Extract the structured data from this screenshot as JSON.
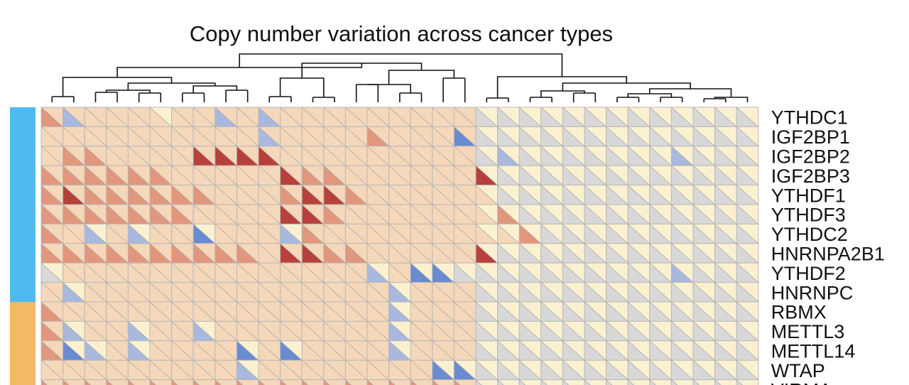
{
  "chart_data": {
    "type": "heatmap",
    "title": "Copy number variation across cancer types",
    "xlabel": "",
    "ylabel": "",
    "n_columns": 33,
    "rows": [
      "YTHDC1",
      "IGF2BP1",
      "IGF2BP2",
      "IGF2BP3",
      "YTHDF1",
      "YTHDF3",
      "YTHDC2",
      "HNRNPA2B1",
      "YTHDF2",
      "HNRNPC",
      "RBMX",
      "METTL3",
      "METTL14",
      "WTAP",
      "VIRMA"
    ],
    "row_groups": [
      {
        "color": "#4fbaf2",
        "rows": [
          "YTHDC1",
          "IGF2BP1",
          "IGF2BP2",
          "IGF2BP3",
          "YTHDF1",
          "YTHDF3",
          "YTHDC2",
          "HNRNPA2B1",
          "YTHDF2",
          "HNRNPC"
        ]
      },
      {
        "color": "#f5b865",
        "rows": [
          "RBMX",
          "METTL3",
          "METTL14",
          "WTAP",
          "VIRMA"
        ]
      }
    ],
    "cell_encoding": "each cell split diagonally: lower-left triangle and upper-right triangle, colored by level from -2 (blue) to +3 (dark red)",
    "color_scale": {
      "-2": "#6a8bd0",
      "-1": "#a9b8de",
      "0": "#d8d8d8",
      "0.5": "#fbf1d0",
      "1": "#f5d7b9",
      "2": "#e2967c",
      "3": "#b8403a"
    },
    "values_lower_left": [
      [
        2,
        -1,
        1,
        1,
        1,
        1,
        1,
        1,
        -1,
        1,
        -1,
        1,
        1,
        1,
        1,
        1,
        1,
        1,
        1,
        1,
        0,
        0,
        0,
        0,
        0,
        0,
        0,
        0,
        0,
        0,
        0,
        0,
        0
      ],
      [
        1,
        1,
        1,
        1,
        1,
        1,
        1,
        1,
        1,
        1,
        -1,
        1,
        1,
        1,
        1,
        2,
        1,
        1,
        1,
        -2,
        0,
        0,
        0,
        0,
        0,
        0,
        0,
        0,
        0,
        0,
        0,
        0,
        0
      ],
      [
        1,
        2,
        2,
        1,
        1,
        1,
        1,
        3,
        3,
        3,
        3,
        1,
        1,
        1,
        1,
        1,
        1,
        1,
        1,
        1,
        0,
        -1,
        0,
        0,
        0,
        0,
        0,
        0,
        0,
        -1,
        0,
        0,
        0
      ],
      [
        2,
        2,
        2,
        2,
        2,
        2,
        1,
        1,
        1,
        1,
        1,
        3,
        2,
        2,
        1,
        1,
        1,
        1,
        1,
        1,
        3,
        0,
        0,
        0,
        0,
        0,
        0,
        0,
        0,
        0,
        0,
        0,
        0
      ],
      [
        2,
        3,
        2,
        2,
        2,
        2,
        2,
        2,
        1,
        1,
        1,
        2,
        3,
        3,
        2,
        1,
        1,
        1,
        1,
        1,
        1,
        0,
        0,
        0,
        0,
        0,
        0,
        0,
        0,
        0,
        0,
        0,
        0
      ],
      [
        2,
        2,
        2,
        2,
        2,
        2,
        2,
        1,
        1,
        1,
        1,
        3,
        3,
        2,
        1,
        1,
        1,
        1,
        1,
        1,
        1,
        2,
        0,
        0,
        0,
        0,
        0,
        0,
        0,
        0,
        0,
        0,
        0
      ],
      [
        2,
        1,
        -1,
        1,
        -1,
        1,
        1,
        -2,
        1,
        1,
        1,
        -1,
        2,
        1,
        1,
        1,
        1,
        1,
        1,
        1,
        1,
        1,
        2,
        0,
        0,
        0,
        0,
        0,
        0,
        0,
        0,
        0,
        0
      ],
      [
        2,
        2,
        2,
        2,
        2,
        2,
        2,
        2,
        2,
        2,
        1,
        3,
        3,
        2,
        2,
        1,
        1,
        1,
        1,
        1,
        3,
        0,
        0,
        0,
        0,
        0,
        0,
        0,
        0,
        0,
        0,
        0,
        0
      ],
      [
        0,
        1,
        1,
        1,
        1,
        1,
        1,
        1,
        1,
        1,
        1,
        1,
        1,
        1,
        1,
        -1,
        1,
        -2,
        -2,
        0,
        0,
        0,
        0,
        0,
        0,
        0,
        0,
        0,
        0,
        -1,
        0,
        0,
        0
      ],
      [
        1,
        -1,
        1,
        1,
        1,
        1,
        1,
        1,
        1,
        1,
        1,
        1,
        1,
        1,
        1,
        1,
        -1,
        1,
        1,
        1,
        0,
        0,
        0,
        0,
        0,
        0,
        0,
        0,
        0,
        0,
        0,
        0,
        0
      ],
      [
        2,
        1,
        1,
        1,
        1,
        1,
        1,
        1,
        1,
        1,
        1,
        1,
        1,
        1,
        1,
        1,
        -1,
        1,
        1,
        1,
        0,
        0,
        0,
        0,
        0,
        0,
        0,
        0,
        0,
        0,
        0,
        0,
        0
      ],
      [
        2,
        -1,
        1,
        1,
        -1,
        1,
        1,
        -1,
        1,
        1,
        1,
        1,
        1,
        1,
        1,
        1,
        -1,
        1,
        1,
        1,
        0,
        0,
        0,
        0,
        0,
        0,
        0,
        0,
        0,
        0,
        0,
        0,
        0
      ],
      [
        2,
        -2,
        -1,
        1,
        -1,
        1,
        1,
        1,
        1,
        -2,
        1,
        -2,
        1,
        1,
        1,
        1,
        -1,
        1,
        1,
        1,
        0,
        0,
        0,
        0,
        0,
        0,
        0,
        0,
        0,
        0,
        0,
        0,
        0
      ],
      [
        1,
        1,
        1,
        1,
        1,
        1,
        1,
        1,
        1,
        -1,
        1,
        1,
        1,
        1,
        1,
        1,
        1,
        1,
        -2,
        -2,
        0,
        0,
        0,
        0,
        0,
        0,
        0,
        0,
        0,
        0,
        0,
        0,
        0
      ],
      [
        2,
        2,
        2,
        2,
        2,
        2,
        2,
        2,
        2,
        2,
        2,
        2,
        2,
        2,
        2,
        2,
        2,
        2,
        2,
        2,
        0,
        0,
        0,
        0,
        0,
        0,
        0,
        0,
        0,
        0,
        0,
        0,
        0
      ]
    ],
    "values_upper_right": [
      [
        1,
        1,
        1,
        1,
        1,
        0.5,
        1,
        1,
        1,
        1,
        1,
        1,
        1,
        1,
        1,
        1,
        1,
        1,
        1,
        1,
        0.5,
        0.5,
        0.5,
        0.5,
        0.5,
        0.5,
        0.5,
        0.5,
        0.5,
        0.5,
        0.5,
        0.5,
        0.5
      ],
      [
        1,
        1,
        1,
        1,
        1,
        1,
        1,
        1,
        1,
        1,
        1,
        1,
        1,
        1,
        1,
        1,
        1,
        1,
        1,
        1,
        0.5,
        0.5,
        0.5,
        0.5,
        0.5,
        0.5,
        0.5,
        0.5,
        0.5,
        0.5,
        0.5,
        0.5,
        0.5
      ],
      [
        1,
        1,
        1,
        1,
        1,
        1,
        1,
        1,
        1,
        1,
        1,
        1,
        1,
        1,
        1,
        1,
        1,
        1,
        1,
        1,
        0.5,
        0.5,
        0.5,
        0.5,
        0.5,
        0.5,
        0.5,
        0.5,
        0.5,
        0.5,
        0.5,
        0.5,
        0.5
      ],
      [
        1,
        1,
        1,
        1,
        1,
        1,
        1,
        1,
        1,
        1,
        1,
        1,
        1,
        1,
        1,
        1,
        1,
        1,
        1,
        1,
        0.5,
        0.5,
        0.5,
        0.5,
        0.5,
        0.5,
        0.5,
        0.5,
        0.5,
        0.5,
        0.5,
        0.5,
        0.5
      ],
      [
        1,
        1,
        1,
        1,
        1,
        1,
        1,
        1,
        1,
        1,
        1,
        1,
        1,
        1,
        1,
        1,
        1,
        1,
        1,
        1,
        0.5,
        0.5,
        0.5,
        0.5,
        0.5,
        0.5,
        0.5,
        0.5,
        0.5,
        0.5,
        0.5,
        0.5,
        0.5
      ],
      [
        1,
        1,
        1,
        1,
        1,
        1,
        1,
        1,
        1,
        1,
        1,
        1,
        1,
        1,
        1,
        1,
        1,
        1,
        1,
        1,
        0.5,
        0.5,
        0.5,
        0.5,
        0.5,
        0.5,
        0.5,
        0.5,
        0.5,
        0.5,
        0.5,
        0.5,
        0.5
      ],
      [
        1,
        1,
        0.5,
        1,
        0.5,
        1,
        1,
        0.5,
        1,
        1,
        1,
        0.5,
        1,
        1,
        1,
        1,
        1,
        1,
        1,
        1,
        0.5,
        0.5,
        0.5,
        0.5,
        0.5,
        0.5,
        0.5,
        0.5,
        0.5,
        0.5,
        0.5,
        0.5,
        0.5
      ],
      [
        1,
        1,
        1,
        1,
        1,
        1,
        1,
        1,
        1,
        1,
        1,
        1,
        1,
        1,
        1,
        1,
        1,
        1,
        1,
        1,
        0.5,
        0.5,
        0.5,
        0.5,
        0.5,
        0.5,
        0.5,
        0.5,
        0.5,
        0.5,
        0.5,
        0.5,
        0.5
      ],
      [
        0.5,
        1,
        1,
        1,
        1,
        1,
        1,
        1,
        1,
        1,
        1,
        1,
        1,
        1,
        1,
        0.5,
        1,
        0.5,
        0.5,
        0.5,
        0.5,
        0.5,
        0.5,
        0.5,
        0.5,
        0.5,
        0.5,
        0.5,
        0.5,
        0.5,
        0.5,
        0.5,
        0.5
      ],
      [
        1,
        0.5,
        1,
        1,
        1,
        1,
        1,
        1,
        1,
        1,
        1,
        1,
        1,
        1,
        1,
        1,
        0.5,
        1,
        1,
        1,
        0.5,
        0.5,
        0.5,
        0.5,
        0.5,
        0.5,
        0.5,
        0.5,
        0.5,
        0.5,
        0.5,
        0.5,
        0.5
      ],
      [
        1,
        1,
        1,
        1,
        1,
        1,
        1,
        1,
        1,
        1,
        1,
        1,
        1,
        1,
        1,
        1,
        0.5,
        1,
        1,
        1,
        0.5,
        0.5,
        0.5,
        0.5,
        0.5,
        0.5,
        0.5,
        0.5,
        0.5,
        0.5,
        0.5,
        0.5,
        0.5
      ],
      [
        1,
        0.5,
        1,
        1,
        0.5,
        1,
        1,
        0.5,
        1,
        1,
        1,
        1,
        1,
        1,
        1,
        1,
        0.5,
        1,
        1,
        1,
        0.5,
        0.5,
        0.5,
        0.5,
        0.5,
        0.5,
        0.5,
        0.5,
        0.5,
        0.5,
        0.5,
        0.5,
        0.5
      ],
      [
        1,
        0.5,
        0.5,
        1,
        0.5,
        1,
        1,
        1,
        1,
        0.5,
        1,
        0.5,
        1,
        1,
        1,
        1,
        0.5,
        1,
        1,
        1,
        0.5,
        0.5,
        0.5,
        0.5,
        0.5,
        0.5,
        0.5,
        0.5,
        0.5,
        0.5,
        0.5,
        0.5,
        0.5
      ],
      [
        1,
        1,
        1,
        1,
        1,
        1,
        1,
        1,
        1,
        0.5,
        1,
        1,
        1,
        1,
        1,
        1,
        1,
        1,
        0.5,
        0.5,
        0.5,
        0.5,
        0.5,
        0.5,
        0.5,
        0.5,
        0.5,
        0.5,
        0.5,
        0.5,
        0.5,
        0.5,
        0.5
      ],
      [
        1,
        1,
        1,
        1,
        1,
        1,
        1,
        1,
        1,
        1,
        1,
        1,
        1,
        1,
        1,
        1,
        1,
        1,
        1,
        1,
        0.5,
        0.5,
        0.5,
        0.5,
        0.5,
        0.5,
        0.5,
        0.5,
        0.5,
        0.5,
        0.5,
        0.5,
        0.5
      ]
    ],
    "column_dendrogram": "hierarchical clustering tree drawn above the columns",
    "legend": "none",
    "grid": true
  }
}
